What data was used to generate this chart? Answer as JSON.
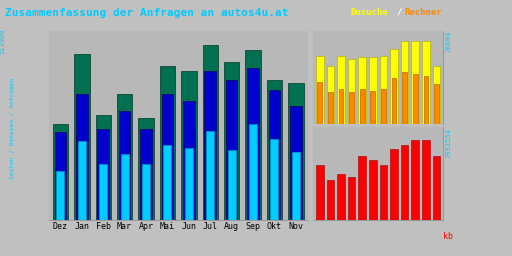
{
  "title": "Zusammenfassung der Anfragen an autos4u.at",
  "xlabel_months": [
    "Dez",
    "Jan",
    "Feb",
    "Mar",
    "Apr",
    "Mai",
    "Jun",
    "Jul",
    "Aug",
    "Sep",
    "Okt",
    "Nov"
  ],
  "ylabel_left_top": "513908",
  "ylabel_right_top": "26694",
  "ylabel_right_bottom": "7992554",
  "label_kb": "kb",
  "background_color": "#c0c0c0",
  "plot_bg": "#b8b8b8",
  "color_green": "#007050",
  "color_blue": "#0000cc",
  "color_cyan": "#00ccff",
  "color_yellow": "#ffff00",
  "color_orange": "#ff8800",
  "color_red": "#ff0000",
  "title_color": "#00ccff",
  "legend_color_besuche": "#ffff00",
  "legend_color_slash": "#ffffff",
  "legend_color_rechner": "#ff8800",
  "text_color_left": "#00ccff",
  "text_color_right": "#c8c8c8",
  "green_bars": [
    0.55,
    0.95,
    0.6,
    0.72,
    0.58,
    0.88,
    0.85,
    1.0,
    0.9,
    0.97,
    0.8,
    0.78
  ],
  "blue_bars": [
    0.5,
    0.72,
    0.52,
    0.62,
    0.52,
    0.72,
    0.68,
    0.85,
    0.8,
    0.87,
    0.74,
    0.65
  ],
  "cyan_bars": [
    0.28,
    0.45,
    0.32,
    0.38,
    0.32,
    0.43,
    0.41,
    0.51,
    0.4,
    0.55,
    0.46,
    0.39
  ],
  "yellow_bars": [
    0.82,
    0.7,
    0.82,
    0.78,
    0.8,
    0.8,
    0.82,
    0.9,
    1.0,
    1.0,
    1.0,
    0.7
  ],
  "orange_bars": [
    0.5,
    0.38,
    0.42,
    0.38,
    0.42,
    0.4,
    0.42,
    0.55,
    0.62,
    0.6,
    0.58,
    0.48
  ],
  "red_bars": [
    0.62,
    0.45,
    0.52,
    0.48,
    0.72,
    0.68,
    0.62,
    0.8,
    0.85,
    0.9,
    0.9,
    0.72
  ]
}
